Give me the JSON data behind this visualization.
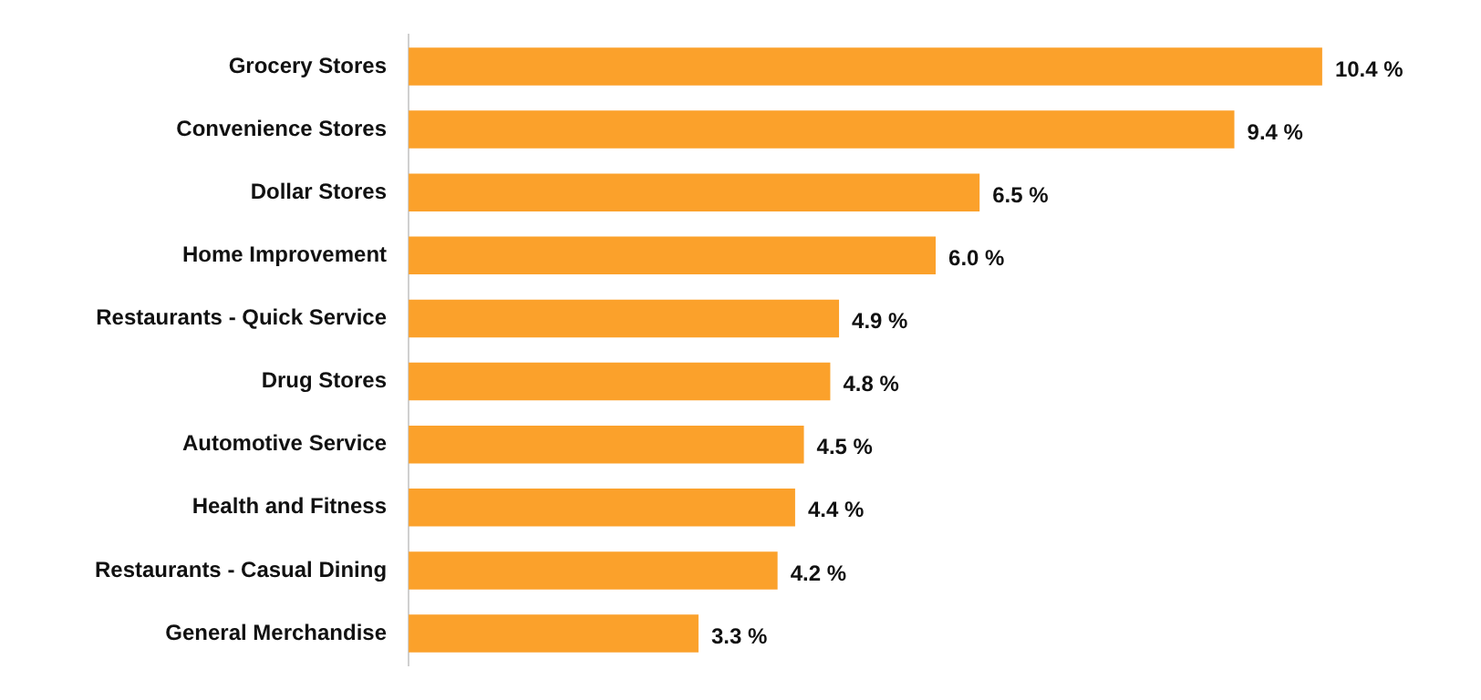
{
  "chart_data": {
    "type": "bar",
    "orientation": "horizontal",
    "categories": [
      "Grocery Stores",
      "Convenience Stores",
      "Dollar Stores",
      "Home Improvement",
      "Restaurants - Quick Service",
      "Drug Stores",
      "Automotive Service",
      "Health and Fitness",
      "Restaurants - Casual Dining",
      "General Merchandise"
    ],
    "values": [
      10.4,
      9.4,
      6.5,
      6.0,
      4.9,
      4.8,
      4.5,
      4.4,
      4.2,
      3.3
    ],
    "value_labels": [
      "10.4 %",
      "9.4 %",
      "6.5 %",
      "6.0 %",
      "4.9 %",
      "4.8 %",
      "4.5 %",
      "4.4 %",
      "4.2 %",
      "3.3 %"
    ],
    "color": "#fba12b",
    "legend": false
  }
}
